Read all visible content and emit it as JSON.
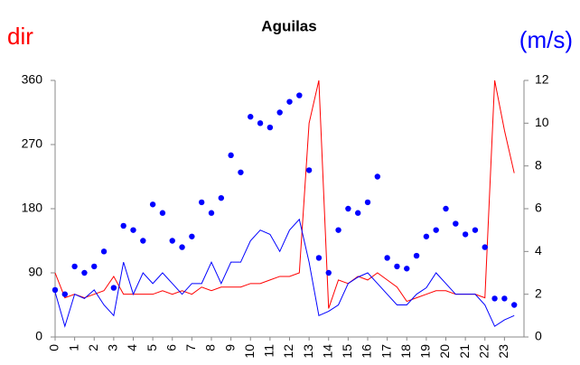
{
  "chart_data": {
    "type": "line",
    "title": "Aguilas",
    "ylabel": "dir",
    "y2label": "(m/s)",
    "ylabel_color": "#ff0000",
    "y2label_color": "#0000ff",
    "x": [
      0,
      0.5,
      1,
      1.5,
      2,
      2.5,
      3,
      3.5,
      4,
      4.5,
      5,
      5.5,
      6,
      6.5,
      7,
      7.5,
      8,
      8.5,
      9,
      9.5,
      10,
      10.5,
      11,
      11.5,
      12,
      12.5,
      13,
      13.5,
      14,
      14.5,
      15,
      15.5,
      16,
      16.5,
      17,
      17.5,
      18,
      18.5,
      19,
      19.5,
      20,
      20.5,
      21,
      21.5,
      22,
      22.5,
      23,
      23.5
    ],
    "xlim": [
      0,
      24
    ],
    "xticks": [
      0,
      1,
      2,
      3,
      4,
      5,
      6,
      7,
      8,
      9,
      10,
      11,
      12,
      13,
      14,
      15,
      16,
      17,
      18,
      19,
      20,
      21,
      22,
      23
    ],
    "ylim": [
      0,
      360
    ],
    "yticks": [
      0,
      90,
      180,
      270,
      360
    ],
    "y2lim": [
      0,
      12
    ],
    "y2ticks": [
      0,
      2,
      4,
      6,
      8,
      10,
      12
    ],
    "grid": false,
    "series": [
      {
        "color": "#ff0000",
        "style": "line",
        "axis": "y",
        "values": [
          90,
          55,
          60,
          55,
          60,
          65,
          85,
          60,
          60,
          60,
          60,
          65,
          60,
          65,
          60,
          70,
          65,
          70,
          70,
          70,
          75,
          75,
          80,
          85,
          85,
          90,
          300,
          360,
          40,
          80,
          75,
          85,
          80,
          90,
          80,
          70,
          50,
          55,
          60,
          65,
          65,
          60,
          60,
          60,
          55,
          360,
          290,
          230
        ]
      },
      {
        "color": "#0000ff",
        "style": "line",
        "axis": "y2",
        "values": [
          2.1,
          0.5,
          2,
          1.8,
          2.2,
          1.5,
          1,
          3.5,
          2,
          3,
          2.5,
          3,
          2.5,
          2,
          2.5,
          2.5,
          3.5,
          2.5,
          3.5,
          3.5,
          4.5,
          5,
          4.8,
          4,
          5,
          5.5,
          3.5,
          1,
          1.2,
          1.5,
          2.5,
          2.8,
          3,
          2.5,
          2,
          1.5,
          1.5,
          2,
          2.3,
          3,
          2.5,
          2,
          2,
          2,
          1.5,
          0.5,
          0.8,
          1
        ]
      },
      {
        "color": "#0000ff",
        "style": "dots",
        "axis": "y2",
        "values": [
          2.2,
          2,
          3.3,
          3,
          3.3,
          4,
          2.3,
          5.2,
          5,
          4.5,
          6.2,
          5.8,
          4.5,
          4.2,
          4.7,
          6.3,
          5.8,
          6.5,
          8.5,
          7.7,
          10.3,
          10,
          9.8,
          10.5,
          11,
          11.3,
          7.8,
          3.7,
          3,
          5,
          6,
          5.8,
          6.3,
          7.5,
          3.7,
          3.3,
          3.2,
          3.8,
          4.7,
          5,
          6,
          5.3,
          4.8,
          5,
          4.2,
          1.8,
          1.8,
          1.5
        ]
      }
    ]
  }
}
